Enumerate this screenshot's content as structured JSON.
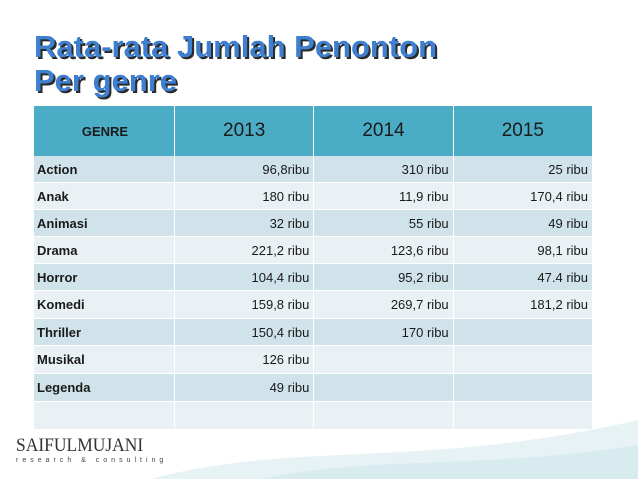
{
  "title": {
    "line1": "Rata-rata Jumlah Penonton",
    "line2": "Per genre"
  },
  "table": {
    "headers": [
      "GENRE",
      "2013",
      "2014",
      "2015"
    ],
    "rows": [
      {
        "genre": "Action",
        "v2013": "96,8ribu",
        "v2014": "310 ribu",
        "v2015": "25 ribu"
      },
      {
        "genre": "Anak",
        "v2013": "180 ribu",
        "v2014": "11,9 ribu",
        "v2015": "170,4 ribu"
      },
      {
        "genre": "Animasi",
        "v2013": "32 ribu",
        "v2014": "55 ribu",
        "v2015": "49 ribu"
      },
      {
        "genre": "Drama",
        "v2013": "221,2 ribu",
        "v2014": "123,6 ribu",
        "v2015": "98,1 ribu"
      },
      {
        "genre": "Horror",
        "v2013": "104,4 ribu",
        "v2014": "95,2 ribu",
        "v2015": "47.4 ribu"
      },
      {
        "genre": "Komedi",
        "v2013": "159,8 ribu",
        "v2014": "269,7 ribu",
        "v2015": "181,2 ribu"
      },
      {
        "genre": "Thriller",
        "v2013": "150,4 ribu",
        "v2014": "170 ribu",
        "v2015": ""
      },
      {
        "genre": "Musikal",
        "v2013": "126 ribu",
        "v2014": "",
        "v2015": ""
      },
      {
        "genre": "Legenda",
        "v2013": "49 ribu",
        "v2014": "",
        "v2015": ""
      },
      {
        "genre": "",
        "v2013": "",
        "v2014": "",
        "v2015": ""
      }
    ]
  },
  "logo": {
    "name": "SAIFULMUJANI",
    "tagline": "research & consulting"
  },
  "colors": {
    "title": "#3f7fd0",
    "header_bg": "#4bacc6",
    "row_odd": "#d0e3ea",
    "row_even": "#e9f1f4",
    "wave": "#dfeef1"
  }
}
